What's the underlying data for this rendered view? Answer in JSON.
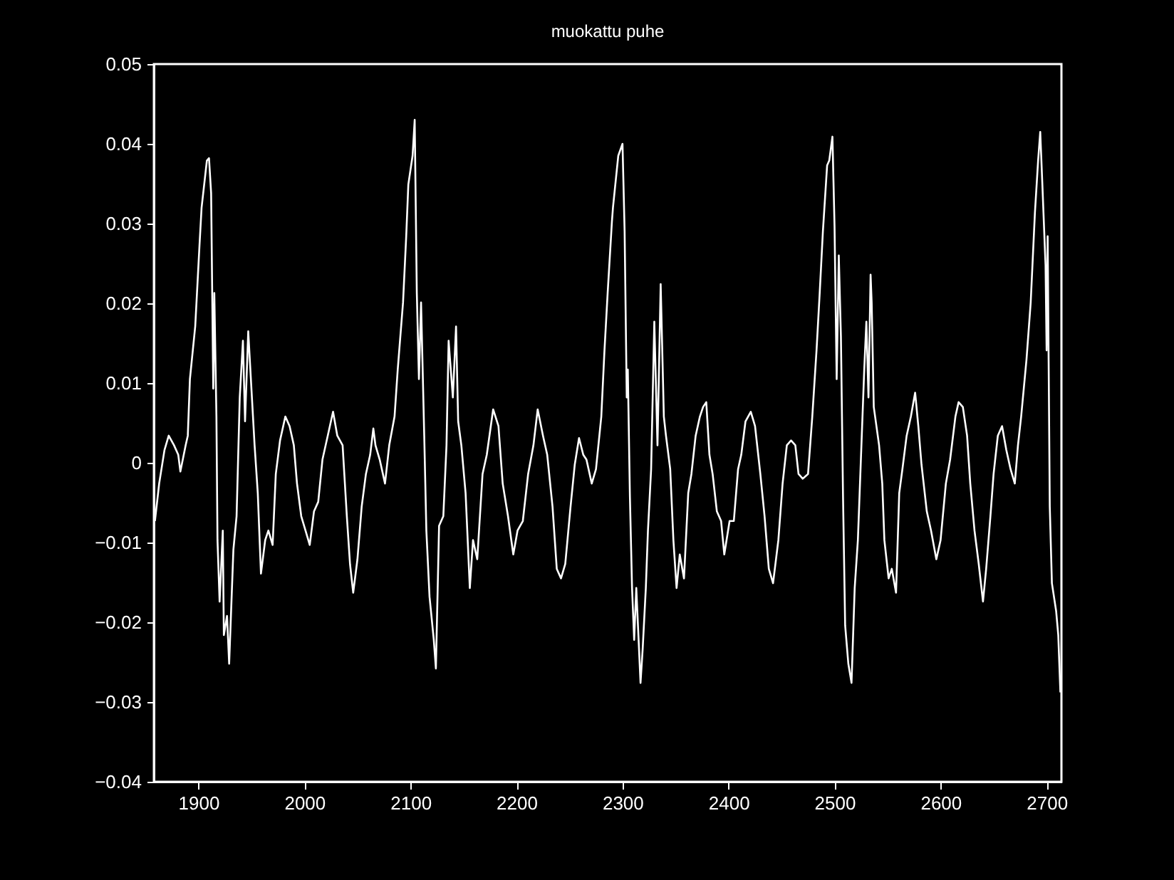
{
  "chart_data": {
    "type": "line",
    "title": "muokattu puhe",
    "xlim": [
      1858,
      2714
    ],
    "xticks": [
      1900,
      2000,
      2100,
      2200,
      2300,
      2400,
      2500,
      2600,
      2700
    ],
    "ylim": [
      -0.04,
      0.05
    ],
    "yticks": [
      -0.04,
      -0.03,
      -0.02,
      -0.01,
      0,
      0.01,
      0.02,
      0.03,
      0.04,
      0.05
    ],
    "grid": false,
    "marker": "none",
    "line_style": "solid",
    "series": [
      {
        "color": "#ffffff",
        "x": [
          1859,
          1863,
          1868,
          1872,
          1877,
          1881,
          1883,
          1888,
          1890,
          1892,
          1897,
          1901,
          1903,
          1908,
          1910,
          1912,
          1914,
          1915,
          1917,
          1918,
          1920,
          1923,
          1924,
          1927,
          1929,
          1933,
          1936,
          1939,
          1942,
          1944,
          1947,
          1950,
          1953,
          1956,
          1959,
          1963,
          1966,
          1970,
          1973,
          1977,
          1982,
          1986,
          1990,
          1993,
          1997,
          2001,
          2005,
          2009,
          2013,
          2017,
          2022,
          2027,
          2031,
          2036,
          2040,
          2043,
          2046,
          2050,
          2054,
          2058,
          2062,
          2065,
          2067,
          2071,
          2076,
          2080,
          2085,
          2088,
          2093,
          2096,
          2098,
          2102,
          2104,
          2106,
          2108,
          2110,
          2113,
          2115,
          2118,
          2122,
          2124,
          2127,
          2131,
          2134,
          2136,
          2140,
          2143,
          2145,
          2148,
          2152,
          2156,
          2159,
          2163,
          2168,
          2172,
          2178,
          2183,
          2187,
          2192,
          2197,
          2201,
          2206,
          2211,
          2216,
          2220,
          2225,
          2229,
          2234,
          2238,
          2242,
          2246,
          2251,
          2255,
          2259,
          2263,
          2266,
          2271,
          2275,
          2280,
          2283,
          2286,
          2290,
          2291,
          2296,
          2300,
          2302,
          2304,
          2305,
          2307,
          2309,
          2311,
          2313,
          2317,
          2319,
          2322,
          2324,
          2327,
          2330,
          2333,
          2336,
          2339,
          2341,
          2345,
          2348,
          2351,
          2354,
          2358,
          2362,
          2365,
          2369,
          2373,
          2376,
          2379,
          2382,
          2385,
          2389,
          2393,
          2396,
          2401,
          2405,
          2409,
          2412,
          2416,
          2421,
          2425,
          2430,
          2434,
          2438,
          2442,
          2447,
          2451,
          2455,
          2459,
          2463,
          2466,
          2470,
          2475,
          2479,
          2483,
          2486,
          2489,
          2493,
          2495,
          2498,
          2500,
          2502,
          2504,
          2506,
          2508,
          2510,
          2513,
          2516,
          2519,
          2522,
          2524,
          2528,
          2530,
          2532,
          2534,
          2535,
          2537,
          2542,
          2545,
          2547,
          2551,
          2554,
          2558,
          2561,
          2564,
          2568,
          2572,
          2576,
          2579,
          2582,
          2587,
          2591,
          2596,
          2600,
          2605,
          2609,
          2614,
          2617,
          2621,
          2625,
          2628,
          2632,
          2636,
          2640,
          2643,
          2647,
          2650,
          2654,
          2658,
          2662,
          2666,
          2670,
          2673,
          2676,
          2681,
          2685,
          2689,
          2692,
          2694,
          2696,
          2699,
          2700,
          2701,
          2703,
          2705,
          2709,
          2711,
          2713
        ],
        "values": [
          -0.0073,
          -0.0026,
          0.0016,
          0.0034,
          0.0022,
          0.001,
          -0.0011,
          0.0022,
          0.0034,
          0.0105,
          0.0171,
          0.0272,
          0.032,
          0.0379,
          0.0382,
          0.0338,
          0.0093,
          0.0213,
          0.0058,
          -0.0097,
          -0.0174,
          -0.0085,
          -0.0216,
          -0.0192,
          -0.0252,
          -0.0109,
          -0.0067,
          0.0082,
          0.0153,
          0.0052,
          0.0165,
          0.0093,
          0.0022,
          -0.0038,
          -0.0139,
          -0.0097,
          -0.0085,
          -0.0103,
          -0.0014,
          0.0028,
          0.0058,
          0.0046,
          0.0022,
          -0.0026,
          -0.0067,
          -0.0085,
          -0.0103,
          -0.0061,
          -0.0049,
          0.0004,
          0.0034,
          0.0064,
          0.0034,
          0.0022,
          -0.0067,
          -0.0127,
          -0.0163,
          -0.0121,
          -0.0055,
          -0.0014,
          0.001,
          0.0043,
          0.0022,
          0.0004,
          -0.0026,
          0.0022,
          0.0058,
          0.0117,
          0.0201,
          0.0284,
          0.0349,
          0.0385,
          0.043,
          0.0213,
          0.0105,
          0.0201,
          0.0034,
          -0.0085,
          -0.0168,
          -0.0222,
          -0.0258,
          -0.0079,
          -0.0067,
          0.0022,
          0.0153,
          0.0082,
          0.0171,
          0.0052,
          0.0022,
          -0.0038,
          -0.0157,
          -0.0097,
          -0.0121,
          -0.0014,
          0.001,
          0.0067,
          0.0046,
          -0.0026,
          -0.0067,
          -0.0115,
          -0.0085,
          -0.0073,
          -0.0014,
          0.0022,
          0.0067,
          0.0034,
          0.001,
          -0.0055,
          -0.0133,
          -0.0145,
          -0.0127,
          -0.0055,
          -0.0002,
          0.0031,
          0.001,
          0.0004,
          -0.0026,
          -0.0008,
          0.0058,
          0.0141,
          0.0213,
          0.0302,
          0.032,
          0.0385,
          0.04,
          0.029,
          0.0082,
          0.0117,
          -0.0043,
          -0.0157,
          -0.0222,
          -0.0157,
          -0.0276,
          -0.0234,
          -0.0157,
          -0.0085,
          -0.0008,
          0.0177,
          0.0022,
          0.0224,
          0.0058,
          0.0034,
          -0.0008,
          -0.0097,
          -0.0157,
          -0.0115,
          -0.0145,
          -0.0038,
          -0.0014,
          0.0034,
          0.0058,
          0.007,
          0.0076,
          0.001,
          -0.0014,
          -0.0061,
          -0.0073,
          -0.0115,
          -0.0073,
          -0.0073,
          -0.0008,
          0.001,
          0.0052,
          0.0064,
          0.0046,
          -0.0014,
          -0.0067,
          -0.0133,
          -0.0151,
          -0.0097,
          -0.0026,
          0.0022,
          0.0028,
          0.0022,
          -0.0014,
          -0.002,
          -0.0014,
          0.0058,
          0.0141,
          0.0213,
          0.029,
          0.0373,
          0.0379,
          0.0409,
          0.0296,
          0.0105,
          0.026,
          0.0159,
          -0.0043,
          -0.0204,
          -0.0252,
          -0.0276,
          -0.0157,
          -0.0097,
          -0.0026,
          0.0117,
          0.0177,
          0.0082,
          0.0236,
          0.0201,
          0.007,
          0.0022,
          -0.0026,
          -0.0097,
          -0.0145,
          -0.0133,
          -0.0163,
          -0.0038,
          -0.0008,
          0.0034,
          0.0058,
          0.0088,
          0.0046,
          -0.0002,
          -0.0061,
          -0.0085,
          -0.0121,
          -0.0097,
          -0.0026,
          0.0004,
          0.0058,
          0.0076,
          0.007,
          0.0034,
          -0.0026,
          -0.0085,
          -0.0127,
          -0.0174,
          -0.0133,
          -0.0067,
          -0.0014,
          0.0034,
          0.0046,
          0.0016,
          -0.0008,
          -0.0026,
          0.0022,
          0.0058,
          0.0129,
          0.0201,
          0.0314,
          0.0379,
          0.0415,
          0.0349,
          0.0248,
          0.0141,
          0.0284,
          -0.0055,
          -0.0151,
          -0.0186,
          -0.0216,
          -0.0288
        ]
      }
    ]
  }
}
